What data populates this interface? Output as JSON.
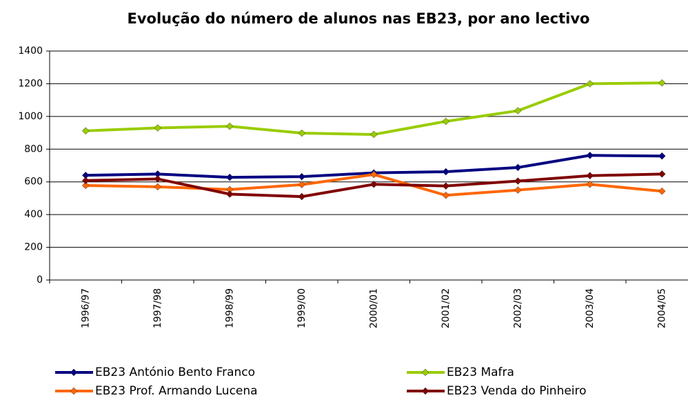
{
  "chart_data": {
    "type": "line",
    "title": "Evolução do número de alunos nas EB23, por ano lectivo",
    "categories": [
      "1996/97",
      "1997/98",
      "1998/99",
      "1999/00",
      "2000/01",
      "2001/02",
      "2002/03",
      "2003/04",
      "2004/05"
    ],
    "series": [
      {
        "name": "EB23 António Bento Franco",
        "color": "#000080",
        "values": [
          640,
          648,
          628,
          632,
          655,
          662,
          688,
          762,
          758
        ]
      },
      {
        "name": "EB23 Mafra",
        "color": "#99cc00",
        "values": [
          912,
          930,
          940,
          898,
          890,
          970,
          1035,
          1200,
          1205
        ]
      },
      {
        "name": "EB23 Prof. Armando Lucena",
        "color": "#ff6600",
        "values": [
          578,
          570,
          553,
          583,
          645,
          518,
          550,
          585,
          543
        ]
      },
      {
        "name": "EB23 Venda do Pinheiro",
        "color": "#800000",
        "values": [
          608,
          618,
          525,
          510,
          585,
          575,
          605,
          638,
          648
        ]
      }
    ],
    "ylim": [
      0,
      1400
    ],
    "yticks": [
      0,
      200,
      400,
      600,
      800,
      1000,
      1200,
      1400
    ],
    "grid": true
  }
}
